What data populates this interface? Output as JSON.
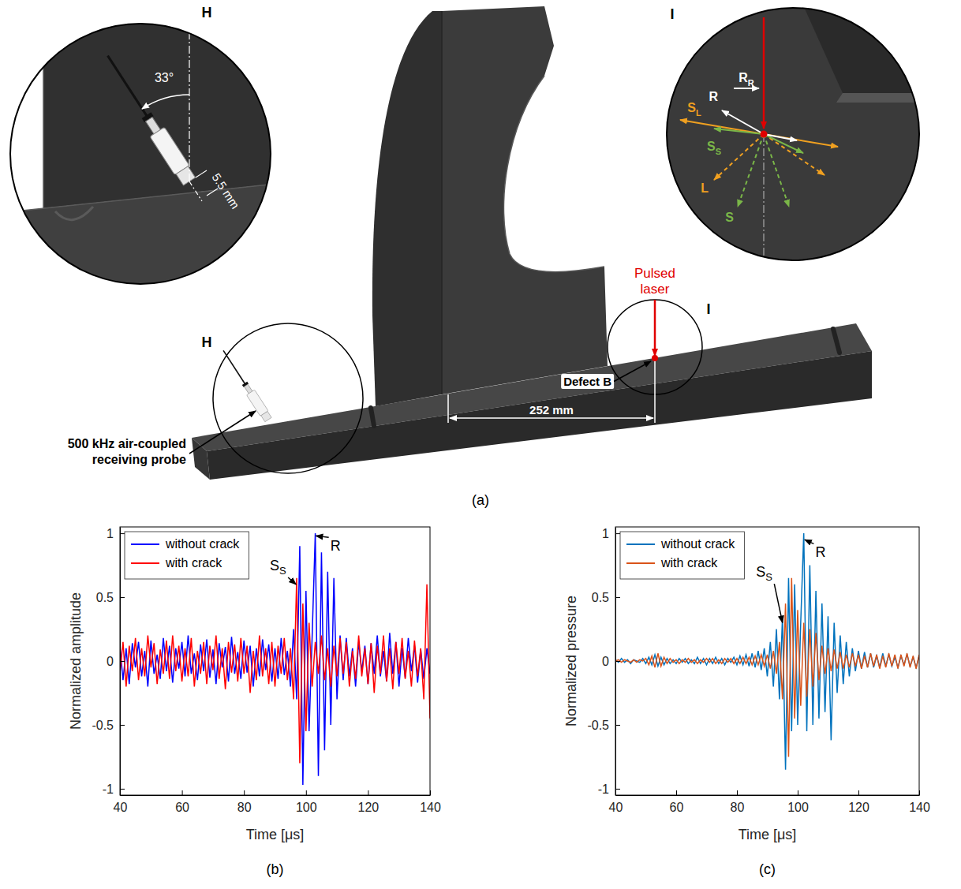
{
  "diagram": {
    "caption": "(a)",
    "zoom_labels": [
      "H",
      "I"
    ],
    "probe_label": "500 kHz air-coupled receiving probe",
    "defect_label": "Defect B",
    "distance": "252 mm",
    "laser_label": "Pulsed laser",
    "inset_h": {
      "label": "H",
      "angle": "33°",
      "offset": "5.5 mm"
    },
    "inset_i": {
      "label": "I",
      "waves": [
        {
          "text": "R",
          "color": "#ffffff"
        },
        {
          "text": "R",
          "sub": "R",
          "color": "#ffffff"
        },
        {
          "text": "S",
          "sub": "L",
          "color": "#f0a020"
        },
        {
          "text": "S",
          "sub": "S",
          "color": "#7ab648"
        },
        {
          "text": "L",
          "color": "#f0a020"
        },
        {
          "text": "S",
          "color": "#7ab648"
        }
      ]
    }
  },
  "chart_data": [
    {
      "type": "line",
      "title": "(b)",
      "xlabel": "Time [μs]",
      "ylabel": "Normalized amplitude",
      "x": [
        40,
        41,
        42,
        43,
        44,
        45,
        46,
        47,
        48,
        49,
        50,
        51,
        52,
        53,
        54,
        55,
        56,
        57,
        58,
        59,
        60,
        61,
        62,
        63,
        64,
        65,
        66,
        67,
        68,
        69,
        70,
        71,
        72,
        73,
        74,
        75,
        76,
        77,
        78,
        79,
        80,
        81,
        82,
        83,
        84,
        85,
        86,
        87,
        88,
        89,
        90,
        91,
        92,
        93,
        94,
        95,
        96,
        97,
        98,
        99,
        100,
        101,
        102,
        103,
        104,
        105,
        106,
        107,
        108,
        109,
        110,
        111,
        112,
        113,
        114,
        115,
        116,
        117,
        118,
        119,
        120,
        121,
        122,
        123,
        124,
        125,
        126,
        127,
        128,
        129,
        130,
        131,
        132,
        133,
        134,
        135,
        136,
        137,
        138,
        139,
        140
      ],
      "xlim": [
        40,
        140
      ],
      "xticks": [
        40,
        60,
        80,
        100,
        120,
        140
      ],
      "ylim": [
        -1.05,
        1.05
      ],
      "yticks": [
        -1,
        -0.5,
        0,
        0.5,
        1
      ],
      "legend": "upper left",
      "series": [
        {
          "name": "without crack",
          "color": "#0000ff",
          "values": [
            0.12,
            -0.15,
            0.1,
            -0.18,
            0.14,
            -0.05,
            0.15,
            -0.12,
            0.08,
            -0.2,
            0.16,
            -0.1,
            0.05,
            -0.14,
            0.18,
            -0.08,
            0.12,
            -0.17,
            0.1,
            -0.06,
            0.15,
            -0.12,
            0.2,
            -0.1,
            0.06,
            -0.15,
            0.13,
            -0.08,
            0.17,
            -0.13,
            0.09,
            -0.18,
            0.14,
            -0.05,
            0.11,
            -0.16,
            0.19,
            -0.1,
            0.07,
            -0.14,
            0.16,
            -0.09,
            0.12,
            -0.2,
            0.1,
            -0.12,
            0.17,
            -0.07,
            0.13,
            -0.16,
            0.1,
            -0.14,
            0.18,
            -0.11,
            0.08,
            -0.2,
            0.25,
            -0.3,
            0.9,
            -0.97,
            0.55,
            -0.55,
            0.2,
            1,
            -0.9,
            0.85,
            -0.7,
            0.7,
            -0.5,
            0.65,
            -0.3,
            0.2,
            -0.15,
            0.18,
            -0.12,
            0.1,
            -0.2,
            0.15,
            -0.08,
            0.12,
            -0.18,
            0.14,
            -0.1,
            0.2,
            -0.12,
            0.08,
            -0.16,
            0.22,
            -0.1,
            0.15,
            -0.2,
            0.1,
            -0.13,
            0.18,
            -0.08,
            0.12,
            -0.17,
            0.09,
            -0.14,
            0.1,
            -0.1
          ]
        },
        {
          "name": "with crack",
          "color": "#ff0000",
          "values": [
            -0.1,
            0.15,
            -0.2,
            0.12,
            -0.08,
            0.18,
            -0.15,
            0.1,
            -0.12,
            0.2,
            -0.05,
            0.14,
            -0.18,
            0.09,
            -0.1,
            0.16,
            -0.14,
            0.2,
            -0.08,
            0.12,
            -0.16,
            0.1,
            -0.12,
            0.18,
            -0.2,
            0.08,
            -0.1,
            0.15,
            -0.18,
            0.12,
            -0.07,
            0.2,
            -0.14,
            0.1,
            -0.22,
            0.15,
            -0.09,
            0.13,
            -0.16,
            0.18,
            -0.1,
            0.12,
            -0.25,
            0.08,
            -0.15,
            0.2,
            -0.12,
            0.1,
            -0.18,
            0.15,
            -0.2,
            0.12,
            -0.1,
            0.18,
            -0.15,
            0.1,
            -0.3,
            0.65,
            -0.8,
            0.45,
            -0.55,
            0.3,
            -0.2,
            0.15,
            -0.1,
            0.2,
            -0.15,
            0.1,
            -0.2,
            0.12,
            -0.12,
            0.18,
            -0.1,
            0.15,
            -0.2,
            0.08,
            -0.14,
            0.2,
            -0.12,
            0.1,
            -0.18,
            0.14,
            -0.25,
            0.12,
            -0.1,
            0.2,
            -0.16,
            0.1,
            -0.22,
            0.15,
            -0.1,
            0.18,
            -0.14,
            0.08,
            -0.2,
            0.16,
            -0.12,
            0.1,
            -0.3,
            0.6,
            -0.45
          ]
        }
      ],
      "annotations": [
        {
          "text": "S",
          "sub": "S",
          "x": 91,
          "y": 0.75,
          "ax": 96.8,
          "ay": 0.6
        },
        {
          "text": "R",
          "x": 109.5,
          "y": 0.9,
          "ax": 103.2,
          "ay": 0.98
        }
      ]
    },
    {
      "type": "line",
      "title": "(c)",
      "xlabel": "Time [μs]",
      "ylabel": "Normalized pressure",
      "x": [
        40,
        41,
        42,
        43,
        44,
        45,
        46,
        47,
        48,
        49,
        50,
        51,
        52,
        53,
        54,
        55,
        56,
        57,
        58,
        59,
        60,
        61,
        62,
        63,
        64,
        65,
        66,
        67,
        68,
        69,
        70,
        71,
        72,
        73,
        74,
        75,
        76,
        77,
        78,
        79,
        80,
        81,
        82,
        83,
        84,
        85,
        86,
        87,
        88,
        89,
        90,
        91,
        92,
        93,
        94,
        95,
        96,
        97,
        98,
        99,
        100,
        101,
        102,
        103,
        104,
        105,
        106,
        107,
        108,
        109,
        110,
        111,
        112,
        113,
        114,
        115,
        116,
        117,
        118,
        119,
        120,
        121,
        122,
        123,
        124,
        125,
        126,
        127,
        128,
        129,
        130,
        131,
        132,
        133,
        134,
        135,
        136,
        137,
        138,
        139,
        140
      ],
      "xlim": [
        40,
        140
      ],
      "xticks": [
        40,
        60,
        80,
        100,
        120,
        140
      ],
      "ylim": [
        -1.05,
        1.05
      ],
      "yticks": [
        -1,
        -0.5,
        0,
        0.5,
        1
      ],
      "legend": "upper left",
      "series": [
        {
          "name": "without crack",
          "color": "#0072bd",
          "values": [
            0.01,
            -0.01,
            0.02,
            -0.01,
            0.01,
            -0.02,
            0.01,
            0,
            -0.01,
            0.02,
            -0.02,
            0.03,
            -0.03,
            0.05,
            -0.04,
            0.03,
            -0.03,
            0.02,
            -0.02,
            0.01,
            -0.02,
            0.02,
            -0.01,
            0.02,
            -0.02,
            0.01,
            -0.02,
            0.03,
            -0.02,
            0.02,
            -0.03,
            0.02,
            -0.02,
            0.03,
            -0.02,
            0.02,
            -0.03,
            0.02,
            -0.01,
            0.03,
            -0.03,
            0.04,
            -0.03,
            0.05,
            -0.04,
            0.06,
            -0.05,
            0.08,
            -0.07,
            0.1,
            -0.12,
            0.15,
            -0.2,
            0.25,
            -0.3,
            0.35,
            -0.85,
            0.65,
            -0.55,
            0.6,
            -0.5,
            0.3,
            1,
            -0.55,
            0.75,
            -0.5,
            0.55,
            -0.45,
            0.45,
            -0.4,
            0.35,
            -0.62,
            0.3,
            -0.25,
            0.2,
            -0.18,
            0.15,
            -0.12,
            0.1,
            -0.08,
            0.08,
            -0.06,
            0.07,
            -0.05,
            0.06,
            -0.05,
            0.04,
            -0.05,
            0.06,
            -0.04,
            0.05,
            -0.04,
            0.03,
            -0.05,
            0.04,
            -0.03,
            0.05,
            -0.04,
            0.03,
            -0.05,
            0.04
          ]
        },
        {
          "name": "with crack",
          "color": "#d95319",
          "values": [
            0,
            0.01,
            -0.01,
            0.01,
            0,
            -0.01,
            0.01,
            -0.01,
            0.01,
            0,
            0.02,
            -0.03,
            0.04,
            -0.05,
            0.06,
            -0.04,
            0.03,
            -0.02,
            0.02,
            -0.01,
            0.01,
            -0.02,
            0.01,
            -0.01,
            0.02,
            -0.01,
            0.01,
            -0.02,
            0.01,
            -0.01,
            0.02,
            -0.01,
            0.02,
            -0.02,
            0.01,
            -0.02,
            0.02,
            -0.01,
            0.02,
            -0.02,
            0.02,
            -0.02,
            0.03,
            -0.02,
            0.03,
            -0.03,
            0.04,
            -0.03,
            0.05,
            -0.04,
            0.05,
            -0.06,
            0.08,
            -0.1,
            0.15,
            -0.3,
            0.45,
            -0.75,
            0.65,
            -0.45,
            0.4,
            -0.35,
            0.3,
            -0.28,
            0.25,
            -0.2,
            0.22,
            -0.15,
            0.12,
            -0.1,
            0.1,
            -0.08,
            0.09,
            -0.06,
            0.07,
            -0.06,
            0.05,
            -0.05,
            0.06,
            -0.04,
            0.05,
            -0.06,
            0.04,
            -0.05,
            0.06,
            -0.04,
            0.05,
            -0.06,
            0.04,
            -0.05,
            0.06,
            -0.04,
            0.05,
            -0.06,
            0.05,
            -0.04,
            0.06,
            -0.05,
            0.04,
            -0.06,
            0.05
          ]
        }
      ],
      "annotations": [
        {
          "text": "S",
          "sub": "S",
          "x": 89,
          "y": 0.7,
          "ax": 95,
          "ay": 0.3
        },
        {
          "text": "R",
          "x": 107.5,
          "y": 0.85,
          "ax": 102.3,
          "ay": 0.95
        }
      ]
    }
  ]
}
